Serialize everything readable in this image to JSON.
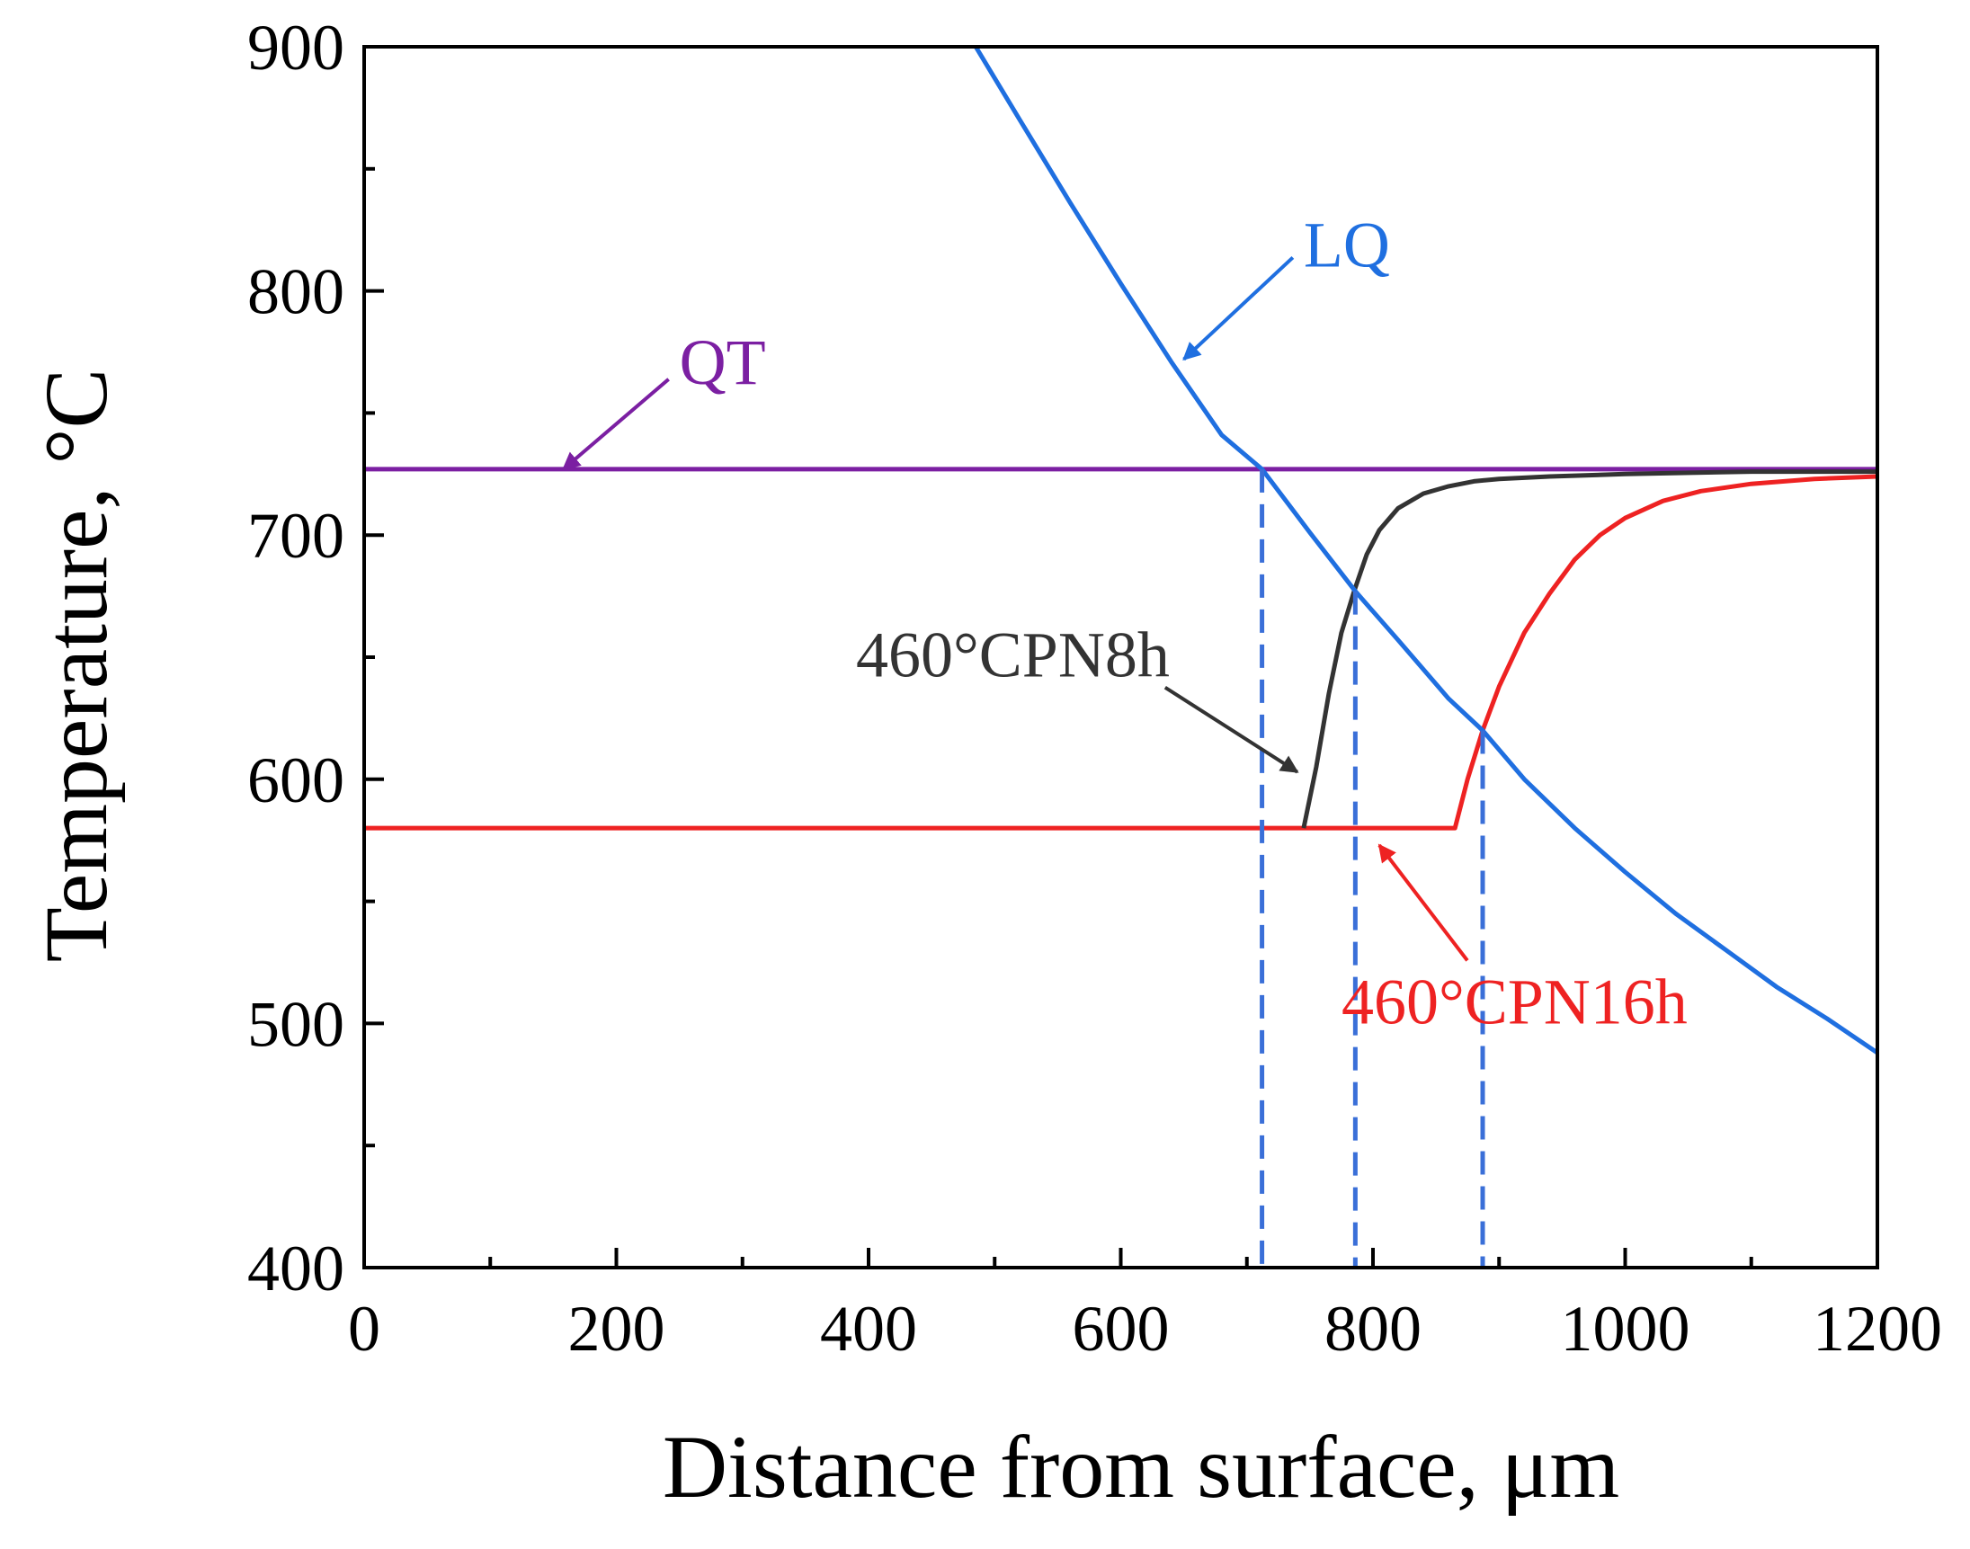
{
  "chart_data": {
    "type": "line",
    "title": "",
    "xlabel": "Distance from surface, μm",
    "ylabel": "Temperature, °C",
    "xlim": [
      0,
      1200
    ],
    "ylim": [
      400,
      900
    ],
    "x_ticks": [
      0,
      200,
      400,
      600,
      800,
      1000,
      1200
    ],
    "y_ticks": [
      400,
      500,
      600,
      700,
      800,
      900
    ],
    "x_minor_step": 100,
    "y_minor_step": 50,
    "grid": false,
    "series": [
      {
        "name": "QT",
        "label": "QT",
        "color": "#7b1fa2",
        "x": [
          0,
          1200
        ],
        "y": [
          727,
          727
        ],
        "label_anchor": {
          "x": 250,
          "y": 762
        },
        "arrow_tip": {
          "x": 158,
          "y": 727
        }
      },
      {
        "name": "LQ",
        "label": "LQ",
        "color": "#1f6fe0",
        "x": [
          485,
          520,
          560,
          600,
          640,
          680,
          712,
          750,
          786,
          820,
          860,
          887,
          920,
          960,
          1000,
          1040,
          1080,
          1120,
          1160,
          1200
        ],
        "y": [
          900,
          870,
          836,
          803,
          771,
          741,
          727,
          701,
          677,
          657,
          633,
          620,
          600,
          580,
          562,
          545,
          530,
          515,
          502,
          488
        ],
        "label_anchor": {
          "x": 745,
          "y": 810
        },
        "arrow_tip": {
          "x": 650,
          "y": 772
        }
      },
      {
        "name": "460°CPN8h",
        "label": "460°CPN8h",
        "color": "#333333",
        "x": [
          0,
          745,
          755,
          765,
          775,
          785,
          795,
          805,
          820,
          840,
          860,
          880,
          900,
          940,
          1000,
          1100,
          1200
        ],
        "y": [
          580,
          580,
          605,
          635,
          660,
          677,
          692,
          702,
          711,
          717,
          720,
          722,
          723,
          724,
          725,
          726,
          726
        ],
        "draw_from_x": 745,
        "label_anchor": {
          "x": 390,
          "y": 642
        },
        "arrow_tip": {
          "x": 740,
          "y": 603
        }
      },
      {
        "name": "460°CPN16h",
        "label": "460°CPN16h",
        "color": "#ee2222",
        "x": [
          0,
          865,
          875,
          887,
          900,
          920,
          940,
          960,
          980,
          1000,
          1030,
          1060,
          1100,
          1150,
          1200
        ],
        "y": [
          580,
          580,
          600,
          620,
          638,
          660,
          676,
          690,
          700,
          707,
          714,
          718,
          721,
          723,
          724
        ],
        "label_anchor": {
          "x": 775,
          "y": 500
        },
        "arrow_tip": {
          "x": 805,
          "y": 573
        }
      }
    ],
    "reference_lines": [
      {
        "x": 712,
        "y_top": 727,
        "color": "#3a6fd8"
      },
      {
        "x": 786,
        "y_top": 677,
        "color": "#3a6fd8"
      },
      {
        "x": 887,
        "y_top": 620,
        "color": "#3a6fd8"
      }
    ]
  }
}
